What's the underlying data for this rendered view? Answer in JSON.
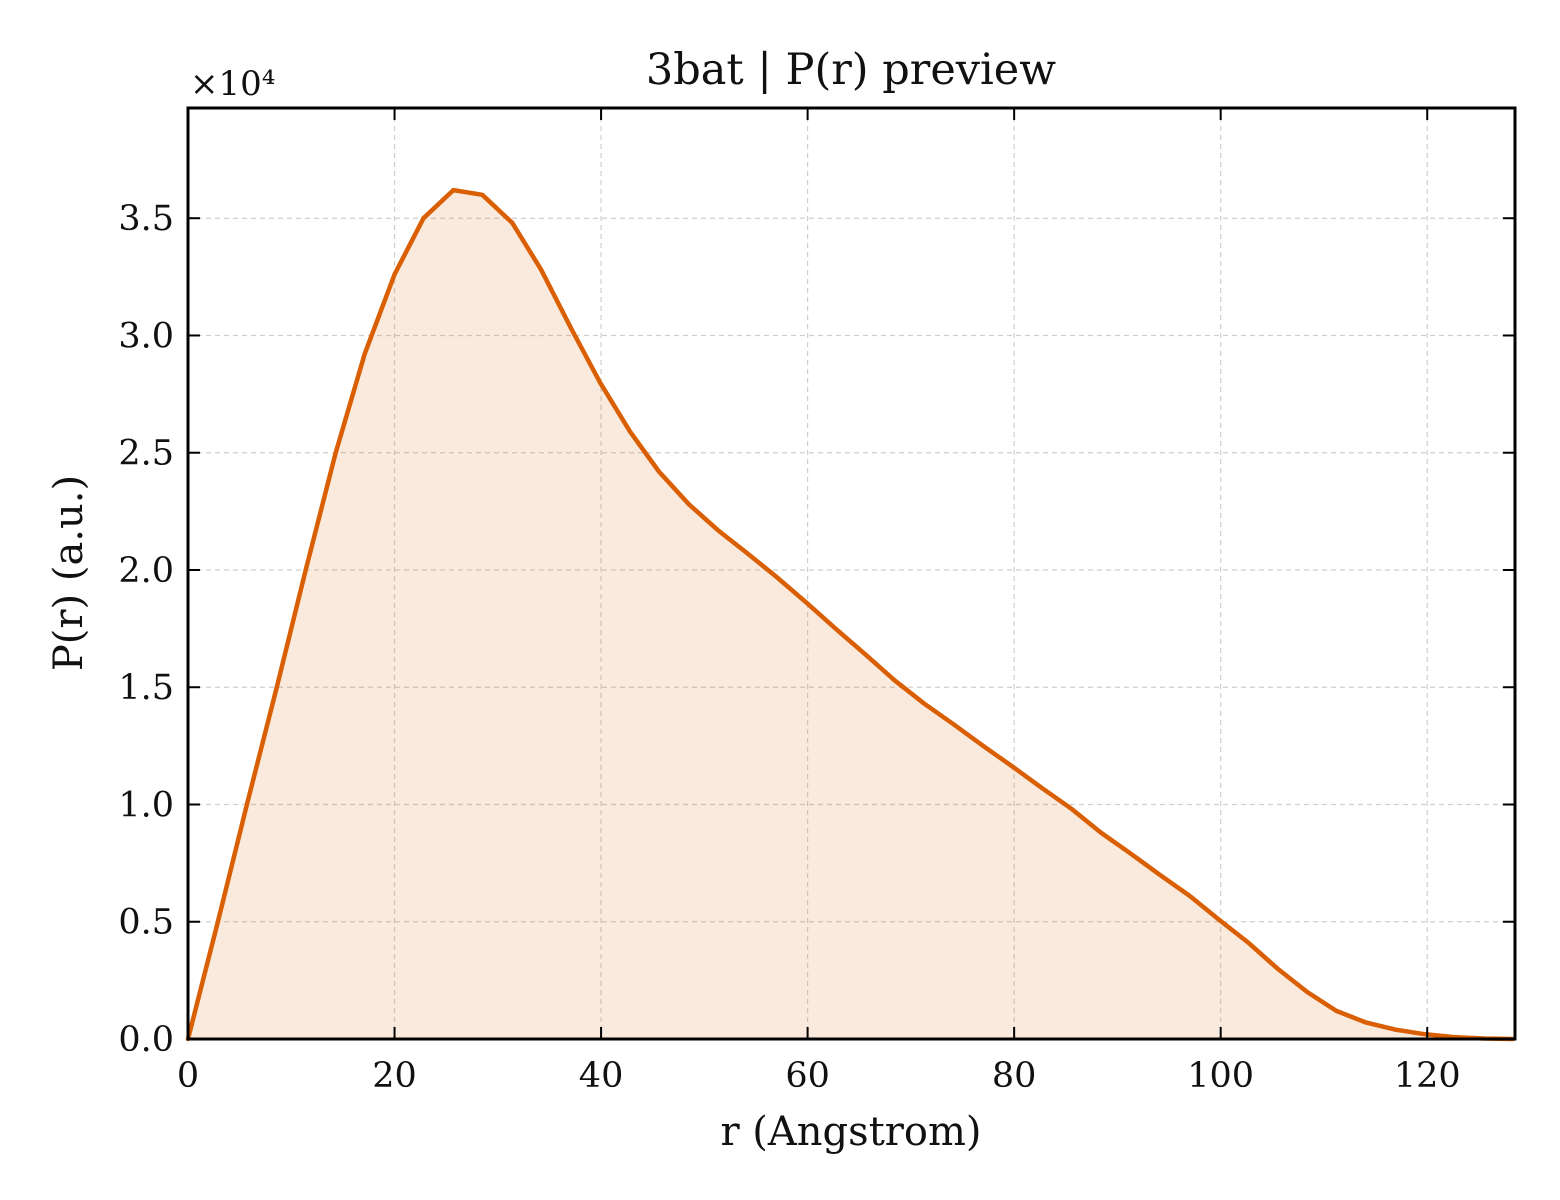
{
  "chart_data": {
    "type": "area",
    "title": "3bat | P(r) preview",
    "xlabel": "r (Angstrom)",
    "ylabel": "P(r) (a.u.)",
    "y_multiplier_label": "×10⁴",
    "y_scale_factor": 10000,
    "xlim": [
      0,
      128.5
    ],
    "ylim": [
      0,
      39700
    ],
    "grid": true,
    "line_color": "#d95f02",
    "fill_color": "#d95f02",
    "fill_opacity": 0.13,
    "x_ticks": [
      0,
      20,
      40,
      60,
      80,
      100,
      120
    ],
    "x_tick_labels": [
      "0",
      "20",
      "40",
      "60",
      "80",
      "100",
      "120"
    ],
    "y_ticks": [
      0,
      5000,
      10000,
      15000,
      20000,
      25000,
      30000,
      35000
    ],
    "y_tick_labels": [
      "0.0",
      "0.5",
      "1.0",
      "1.5",
      "2.0",
      "2.5",
      "3.0",
      "3.5"
    ],
    "x": [
      0,
      2.9,
      5.7,
      8.6,
      11.4,
      14.3,
      17.1,
      20.0,
      22.8,
      25.7,
      28.5,
      31.4,
      34.2,
      37.1,
      39.9,
      42.8,
      45.6,
      48.5,
      51.3,
      54.2,
      57.0,
      59.9,
      62.7,
      65.6,
      68.4,
      71.3,
      74.2,
      77.0,
      79.9,
      82.7,
      85.6,
      88.4,
      91.3,
      94.1,
      97.0,
      99.8,
      102.7,
      105.5,
      108.4,
      111.2,
      114.1,
      116.9,
      119.8,
      122.6,
      125.5,
      128.3
    ],
    "series": [
      {
        "values": [
          0,
          5000,
          10000,
          15000,
          20000,
          25000,
          29200,
          32600,
          35000,
          36200,
          36000,
          34800,
          32800,
          30300,
          28000,
          25900,
          24200,
          22800,
          21700,
          20700,
          19700,
          18600,
          17500,
          16400,
          15300,
          14300,
          13400,
          12500,
          11600,
          10700,
          9800,
          8800,
          7900,
          7000,
          6100,
          5100,
          4100,
          3000,
          2000,
          1200,
          700,
          400,
          200,
          80,
          20,
          0
        ]
      }
    ]
  }
}
